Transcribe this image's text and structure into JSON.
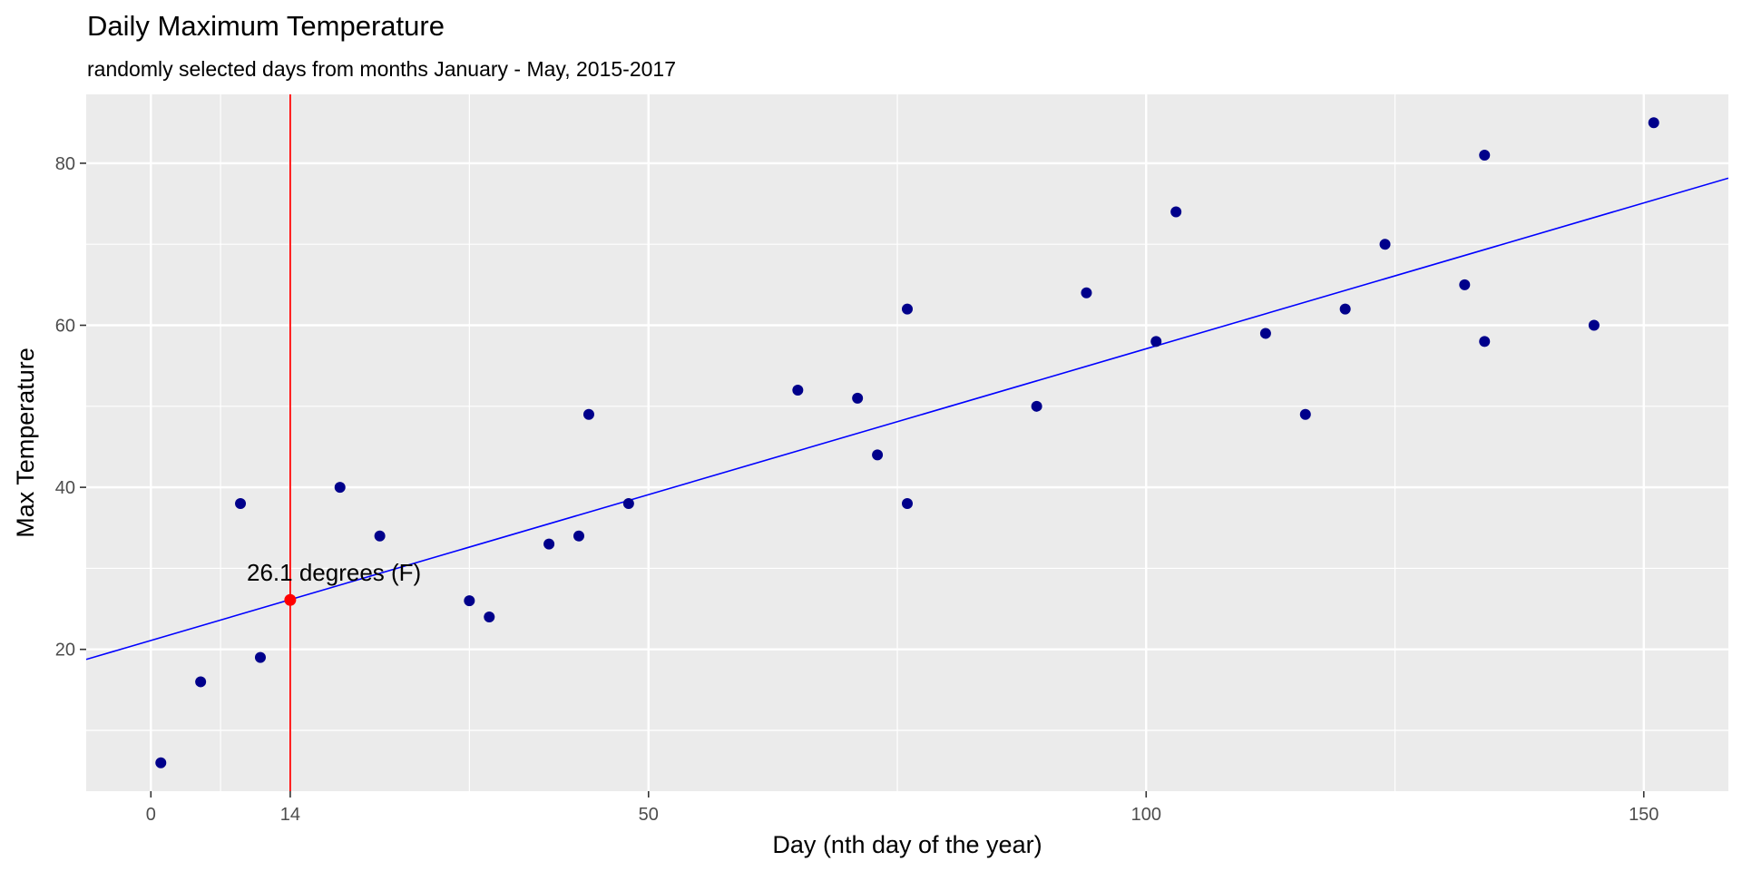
{
  "chart_data": {
    "type": "scatter",
    "title": "Daily Maximum Temperature",
    "subtitle": "randomly selected days from months January - May, 2015-2017",
    "xlabel": "Day (nth day of the year)",
    "ylabel": "Max Temperature",
    "xlim": [
      -6.5,
      158.5
    ],
    "ylim": [
      2.5,
      88.5
    ],
    "x_ticks": [
      0,
      14,
      50,
      100,
      150
    ],
    "y_ticks": [
      20,
      40,
      60,
      80
    ],
    "grid": true,
    "background": "#EBEBEB",
    "point_color": "#00008B",
    "points": [
      {
        "x": 1,
        "y": 6
      },
      {
        "x": 5,
        "y": 16
      },
      {
        "x": 9,
        "y": 38
      },
      {
        "x": 11,
        "y": 19
      },
      {
        "x": 19,
        "y": 40
      },
      {
        "x": 23,
        "y": 34
      },
      {
        "x": 32,
        "y": 26
      },
      {
        "x": 34,
        "y": 24
      },
      {
        "x": 40,
        "y": 33
      },
      {
        "x": 43,
        "y": 34
      },
      {
        "x": 44,
        "y": 49
      },
      {
        "x": 48,
        "y": 38
      },
      {
        "x": 65,
        "y": 52
      },
      {
        "x": 71,
        "y": 51
      },
      {
        "x": 73,
        "y": 44
      },
      {
        "x": 76,
        "y": 62
      },
      {
        "x": 76,
        "y": 38
      },
      {
        "x": 89,
        "y": 50
      },
      {
        "x": 94,
        "y": 64
      },
      {
        "x": 101,
        "y": 58
      },
      {
        "x": 103,
        "y": 74
      },
      {
        "x": 112,
        "y": 59
      },
      {
        "x": 116,
        "y": 49
      },
      {
        "x": 120,
        "y": 62
      },
      {
        "x": 124,
        "y": 70
      },
      {
        "x": 132,
        "y": 65
      },
      {
        "x": 134,
        "y": 81
      },
      {
        "x": 134,
        "y": 58
      },
      {
        "x": 145,
        "y": 60
      },
      {
        "x": 151,
        "y": 85
      }
    ],
    "regression_line": {
      "color": "#0000FF",
      "intercept": 21.1,
      "slope": 0.36
    },
    "vline": {
      "x": 14,
      "color": "#FF0000"
    },
    "highlight_point": {
      "x": 14,
      "y": 26.1,
      "color": "#FF0000"
    },
    "annotation": {
      "text": "26.1 degrees (F)",
      "x": 10,
      "y": 29.5
    }
  }
}
